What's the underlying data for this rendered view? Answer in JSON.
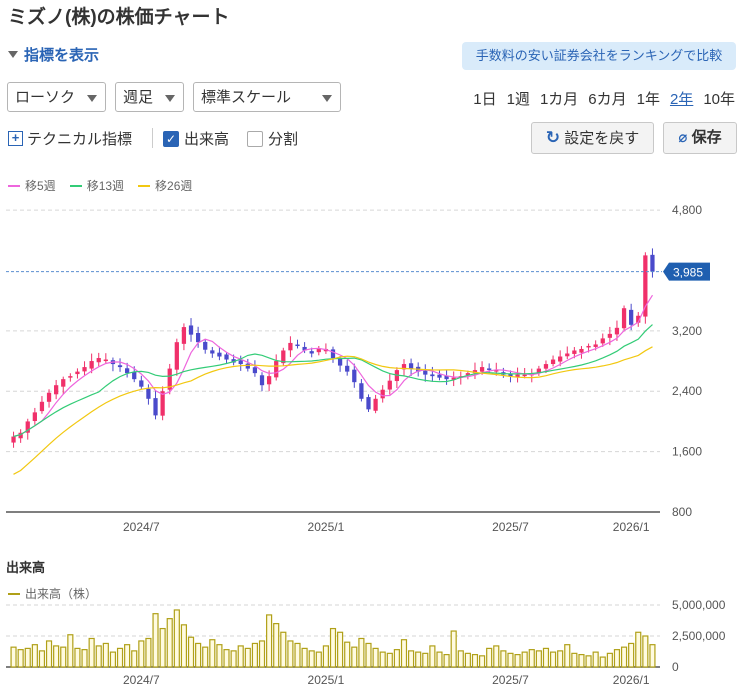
{
  "title": "ミズノ(株)の株価チャート",
  "indicator_toggle": "指標を表示",
  "promo_link": "手数料の安い証券会社をランキングで比較",
  "selects": {
    "chart_type": "ローソク",
    "interval": "週足",
    "scale": "標準スケール"
  },
  "periods": [
    "1日",
    "1週",
    "1カ月",
    "6カ月",
    "1年",
    "2年",
    "10年"
  ],
  "active_period": "2年",
  "technical_label": "テクニカル指標",
  "volume_check_label": "出来高",
  "split_check_label": "分割",
  "reset_label": "設定を戻す",
  "save_label": "保存",
  "legend": [
    {
      "label": "移5週",
      "color": "#ee66dd"
    },
    {
      "label": "移13週",
      "color": "#33cc77"
    },
    {
      "label": "移26週",
      "color": "#f2c811"
    }
  ],
  "volume_title": "出来高",
  "volume_legend": "出来高（株）",
  "colors": {
    "up": "#f0306a",
    "down": "#4a4acb",
    "accent": "#2a64b5",
    "volume": "#b0a018"
  },
  "chart_data": {
    "type": "candlestick",
    "ylim": [
      800,
      5000
    ],
    "y_ticks": [
      "4,800",
      "3,200",
      "2,400",
      "1,600",
      "800"
    ],
    "y_tick_values": [
      4800,
      3200,
      2400,
      1600,
      800
    ],
    "x_ticks": [
      "2024/7",
      "2025/1",
      "2025/7",
      "2026/1"
    ],
    "last_price_label": "3,985",
    "last_price": 3985,
    "weekly_closes": [
      1800,
      1850,
      2000,
      2120,
      2260,
      2380,
      2480,
      2560,
      2600,
      2660,
      2720,
      2800,
      2840,
      2820,
      2760,
      2720,
      2640,
      2560,
      2460,
      2300,
      2080,
      2400,
      2700,
      3050,
      3250,
      3150,
      3050,
      2950,
      2900,
      2860,
      2820,
      2780,
      2760,
      2700,
      2640,
      2480,
      2600,
      2800,
      2940,
      3040,
      3000,
      2940,
      2900,
      2960,
      2960,
      2840,
      2740,
      2660,
      2520,
      2300,
      2160,
      2300,
      2420,
      2540,
      2680,
      2760,
      2700,
      2660,
      2620,
      2600,
      2580,
      2560,
      2580,
      2600,
      2640,
      2680,
      2720,
      2700,
      2680,
      2620,
      2600,
      2620,
      2620,
      2640,
      2700,
      2760,
      2820,
      2860,
      2900,
      2940,
      2960,
      3000,
      3020,
      3100,
      3160,
      3240,
      3500,
      3280,
      3400,
      4200,
      3985
    ],
    "volume_ylim": [
      0,
      5000000
    ],
    "volume_ticks": [
      "5,000,000",
      "2,500,000",
      "0"
    ],
    "volume_tick_values": [
      5000000,
      2500000,
      0
    ],
    "volumes": [
      1600000,
      1400000,
      1500000,
      1800000,
      1300000,
      2100000,
      1700000,
      1600000,
      2600000,
      1500000,
      1400000,
      2300000,
      1700000,
      1900000,
      1200000,
      1500000,
      1800000,
      1300000,
      2100000,
      2300000,
      4300000,
      3100000,
      3900000,
      4600000,
      3400000,
      2400000,
      1900000,
      1600000,
      2200000,
      1800000,
      1400000,
      1300000,
      1700000,
      1500000,
      1900000,
      2100000,
      4200000,
      3500000,
      2800000,
      2100000,
      1900000,
      1500000,
      1300000,
      1200000,
      1700000,
      3100000,
      2800000,
      2000000,
      1600000,
      2300000,
      1900000,
      1500000,
      1200000,
      1100000,
      1400000,
      2200000,
      1300000,
      1200000,
      1100000,
      1700000,
      1200000,
      1000000,
      2900000,
      1300000,
      1100000,
      1000000,
      900000,
      1500000,
      1700000,
      1300000,
      1100000,
      1000000,
      1200000,
      1400000,
      1300000,
      1500000,
      1200000,
      1300000,
      1800000,
      1100000,
      1000000,
      900000,
      1200000,
      800000,
      1100000,
      1400000,
      1600000,
      1900000,
      2800000,
      2500000,
      1800000
    ]
  }
}
